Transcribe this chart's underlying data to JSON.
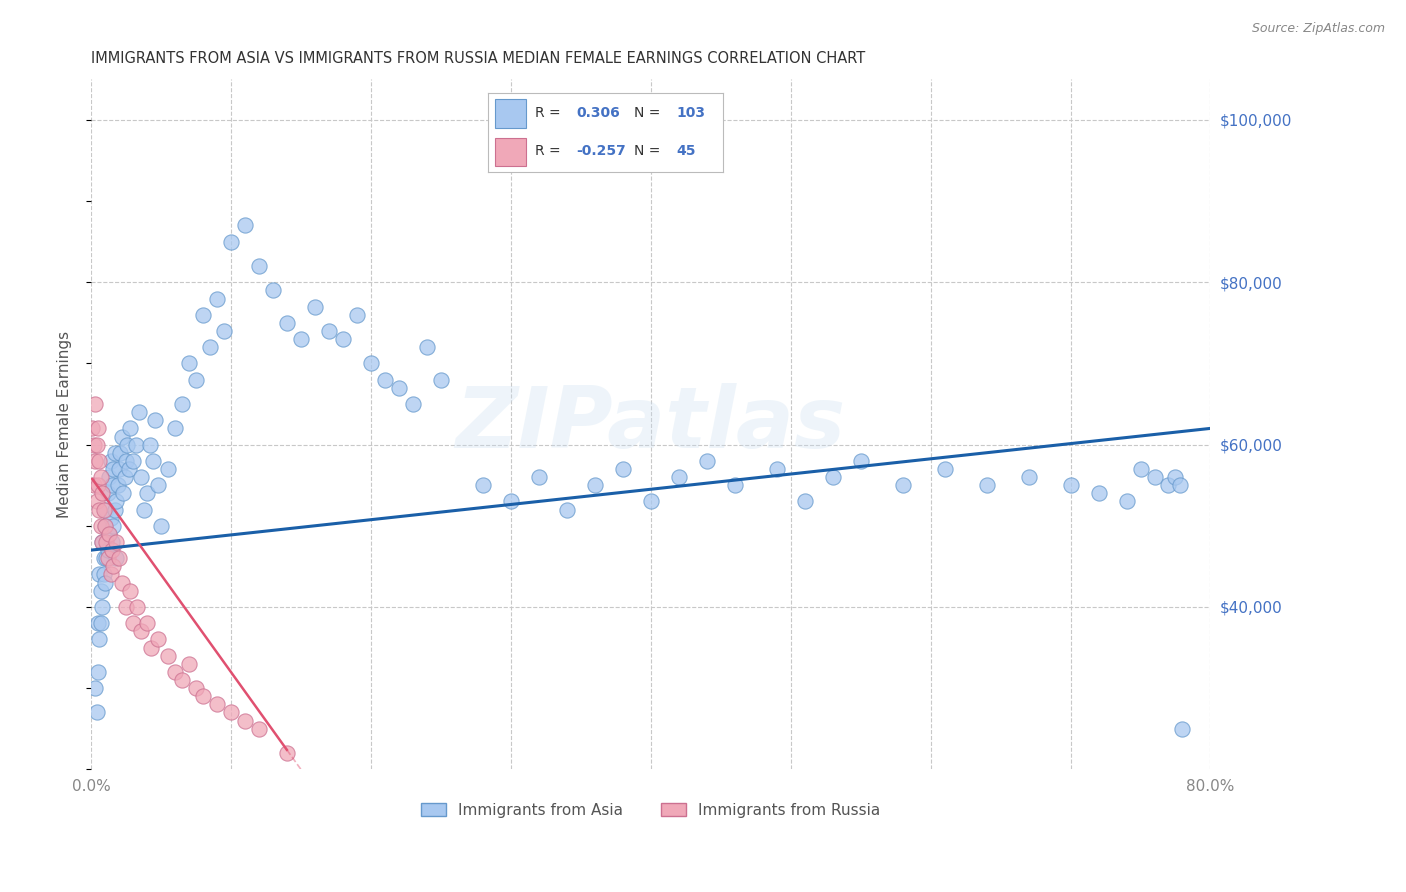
{
  "title": "IMMIGRANTS FROM ASIA VS IMMIGRANTS FROM RUSSIA MEDIAN FEMALE EARNINGS CORRELATION CHART",
  "source": "Source: ZipAtlas.com",
  "ylabel": "Median Female Earnings",
  "xlim": [
    0.0,
    0.8
  ],
  "ylim": [
    20000,
    105000
  ],
  "yticks": [
    40000,
    60000,
    80000,
    100000
  ],
  "ytick_labels": [
    "$40,000",
    "$60,000",
    "$80,000",
    "$100,000"
  ],
  "xticks": [
    0.0,
    0.1,
    0.2,
    0.3,
    0.4,
    0.5,
    0.6,
    0.7,
    0.8
  ],
  "blue_R": 0.306,
  "blue_N": 103,
  "pink_R": -0.257,
  "pink_N": 45,
  "blue_color": "#a8c8f0",
  "pink_color": "#f0a8b8",
  "blue_line_color": "#1a5fa8",
  "pink_line_color": "#e05070",
  "axis_label_color": "#4472c4",
  "grid_color": "#c8c8c8",
  "watermark": "ZIPatlas",
  "blue_dots_x": [
    0.003,
    0.004,
    0.005,
    0.005,
    0.006,
    0.006,
    0.007,
    0.007,
    0.008,
    0.008,
    0.009,
    0.009,
    0.01,
    0.01,
    0.011,
    0.011,
    0.012,
    0.012,
    0.013,
    0.013,
    0.014,
    0.014,
    0.015,
    0.015,
    0.016,
    0.016,
    0.017,
    0.017,
    0.018,
    0.018,
    0.019,
    0.02,
    0.021,
    0.022,
    0.023,
    0.024,
    0.025,
    0.026,
    0.027,
    0.028,
    0.03,
    0.032,
    0.034,
    0.036,
    0.038,
    0.04,
    0.042,
    0.044,
    0.046,
    0.048,
    0.05,
    0.055,
    0.06,
    0.065,
    0.07,
    0.075,
    0.08,
    0.085,
    0.09,
    0.095,
    0.1,
    0.11,
    0.12,
    0.13,
    0.14,
    0.15,
    0.16,
    0.17,
    0.18,
    0.19,
    0.2,
    0.21,
    0.22,
    0.23,
    0.24,
    0.25,
    0.28,
    0.3,
    0.32,
    0.34,
    0.36,
    0.38,
    0.4,
    0.42,
    0.44,
    0.46,
    0.49,
    0.51,
    0.53,
    0.55,
    0.58,
    0.61,
    0.64,
    0.67,
    0.7,
    0.72,
    0.74,
    0.75,
    0.76,
    0.77,
    0.775,
    0.778,
    0.78
  ],
  "blue_dots_y": [
    30000,
    27000,
    38000,
    32000,
    44000,
    36000,
    42000,
    38000,
    48000,
    40000,
    46000,
    44000,
    50000,
    43000,
    52000,
    46000,
    54000,
    47000,
    56000,
    49000,
    58000,
    51000,
    55000,
    48000,
    57000,
    50000,
    59000,
    52000,
    53000,
    46000,
    55000,
    57000,
    59000,
    61000,
    54000,
    56000,
    58000,
    60000,
    57000,
    62000,
    58000,
    60000,
    64000,
    56000,
    52000,
    54000,
    60000,
    58000,
    63000,
    55000,
    50000,
    57000,
    62000,
    65000,
    70000,
    68000,
    76000,
    72000,
    78000,
    74000,
    85000,
    87000,
    82000,
    79000,
    75000,
    73000,
    77000,
    74000,
    73000,
    76000,
    70000,
    68000,
    67000,
    65000,
    72000,
    68000,
    55000,
    53000,
    56000,
    52000,
    55000,
    57000,
    53000,
    56000,
    58000,
    55000,
    57000,
    53000,
    56000,
    58000,
    55000,
    57000,
    55000,
    56000,
    55000,
    54000,
    53000,
    57000,
    56000,
    55000,
    56000,
    55000,
    25000
  ],
  "pink_dots_x": [
    0.001,
    0.002,
    0.002,
    0.003,
    0.003,
    0.004,
    0.004,
    0.005,
    0.005,
    0.006,
    0.006,
    0.007,
    0.007,
    0.008,
    0.008,
    0.009,
    0.01,
    0.011,
    0.012,
    0.013,
    0.014,
    0.015,
    0.016,
    0.018,
    0.02,
    0.022,
    0.025,
    0.028,
    0.03,
    0.033,
    0.036,
    0.04,
    0.043,
    0.048,
    0.055,
    0.06,
    0.065,
    0.07,
    0.075,
    0.08,
    0.09,
    0.1,
    0.11,
    0.12,
    0.14
  ],
  "pink_dots_y": [
    62000,
    60000,
    55000,
    65000,
    58000,
    60000,
    53000,
    62000,
    55000,
    58000,
    52000,
    56000,
    50000,
    54000,
    48000,
    52000,
    50000,
    48000,
    46000,
    49000,
    44000,
    47000,
    45000,
    48000,
    46000,
    43000,
    40000,
    42000,
    38000,
    40000,
    37000,
    38000,
    35000,
    36000,
    34000,
    32000,
    31000,
    33000,
    30000,
    29000,
    28000,
    27000,
    26000,
    25000,
    22000
  ]
}
